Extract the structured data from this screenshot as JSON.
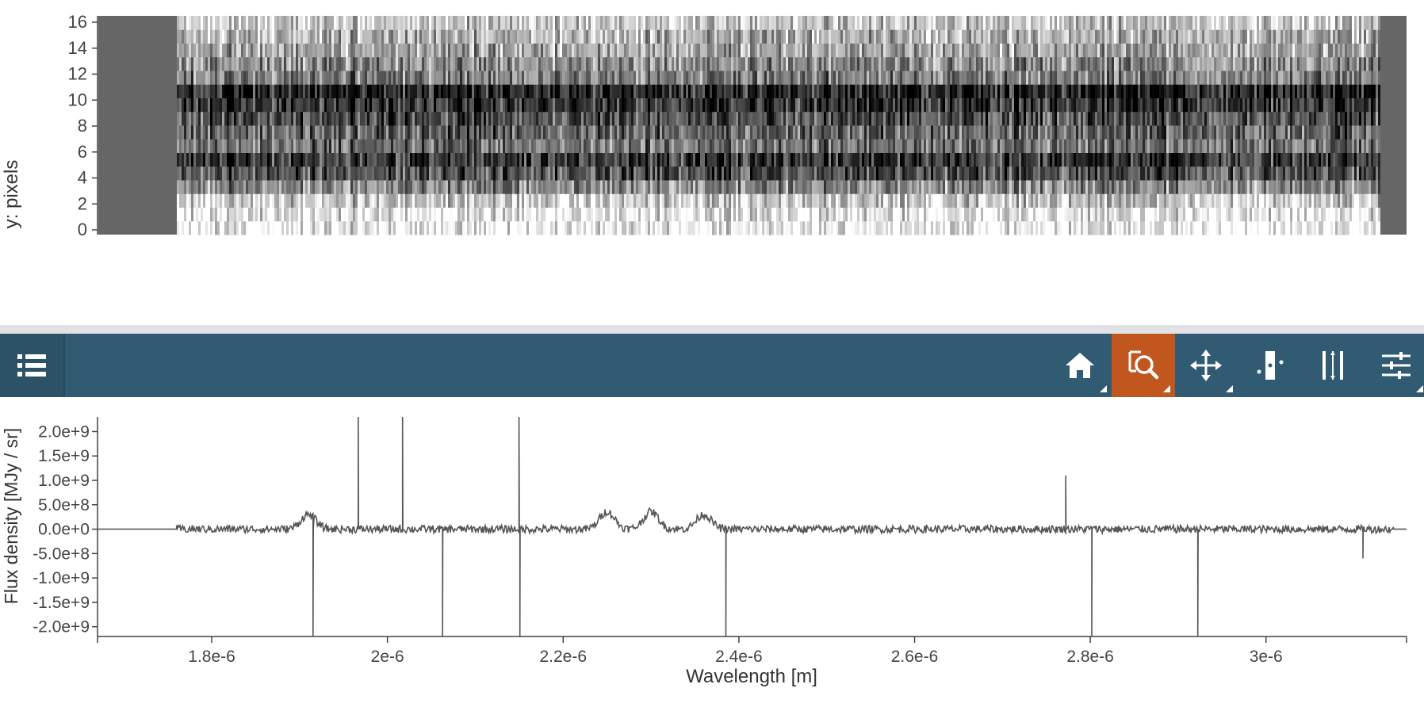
{
  "image_viewer": {
    "ylabel": "y: pixels",
    "yticks": [
      "0",
      "2",
      "4",
      "6",
      "8",
      "10",
      "12",
      "14",
      "16"
    ]
  },
  "toolbar": {
    "buttons": [
      {
        "name": "layers",
        "icon": "list-icon",
        "active": false
      },
      {
        "name": "home",
        "icon": "home-icon",
        "active": false
      },
      {
        "name": "zoom",
        "icon": "zoom-icon",
        "active": true
      },
      {
        "name": "pan",
        "icon": "pan-icon",
        "active": false
      },
      {
        "name": "select-slice",
        "icon": "slice-select-icon",
        "active": false
      },
      {
        "name": "range-select",
        "icon": "range-select-icon",
        "active": false
      },
      {
        "name": "settings",
        "icon": "sliders-icon",
        "active": false
      }
    ],
    "colors": {
      "bar": "#305b73",
      "active": "#c2561f",
      "icon": "#ffffff"
    }
  },
  "chart_data": {
    "type": "line",
    "xlabel": "Wavelength [m]",
    "ylabel": "Flux density [MJy / sr]",
    "xlim": [
      1.67e-06,
      3.16e-06
    ],
    "ylim": [
      -2200000000.0,
      2300000000.0
    ],
    "xticks": [
      "1.8e-6",
      "2e-6",
      "2.2e-6",
      "2.4e-6",
      "2.6e-6",
      "2.8e-6",
      "3e-6"
    ],
    "yticks": [
      "-2.0e+9",
      "-1.5e+9",
      "-1.0e+9",
      "-5.0e+8",
      "0.0e+0",
      "5.0e+8",
      "1.0e+9",
      "1.5e+9",
      "2.0e+9"
    ],
    "data_range": [
      1.76e-06,
      3.145e-06
    ],
    "baseline": 0,
    "noise_amplitude": 80000000.0,
    "spikes": [
      {
        "x": 1.915e-06,
        "y": -2200000000.0
      },
      {
        "x": 1.967e-06,
        "y": 2300000000.0
      },
      {
        "x": 2.017e-06,
        "y": 2300000000.0
      },
      {
        "x": 2.063e-06,
        "y": -2200000000.0
      },
      {
        "x": 2.15e-06,
        "y": 2300000000.0
      },
      {
        "x": 2.151e-06,
        "y": -2200000000.0
      },
      {
        "x": 2.385e-06,
        "y": -2200000000.0
      },
      {
        "x": 2.772e-06,
        "y": 1100000000.0
      },
      {
        "x": 2.802e-06,
        "y": -2200000000.0
      },
      {
        "x": 2.922e-06,
        "y": -2200000000.0
      },
      {
        "x": 3.11e-06,
        "y": -600000000.0
      }
    ],
    "bumps": [
      {
        "x": 1.91e-06,
        "y": 500000000.0
      },
      {
        "x": 2.25e-06,
        "y": 600000000.0
      },
      {
        "x": 2.3e-06,
        "y": 600000000.0
      },
      {
        "x": 2.36e-06,
        "y": 500000000.0
      }
    ],
    "line_color": "#555555",
    "grid": false
  }
}
